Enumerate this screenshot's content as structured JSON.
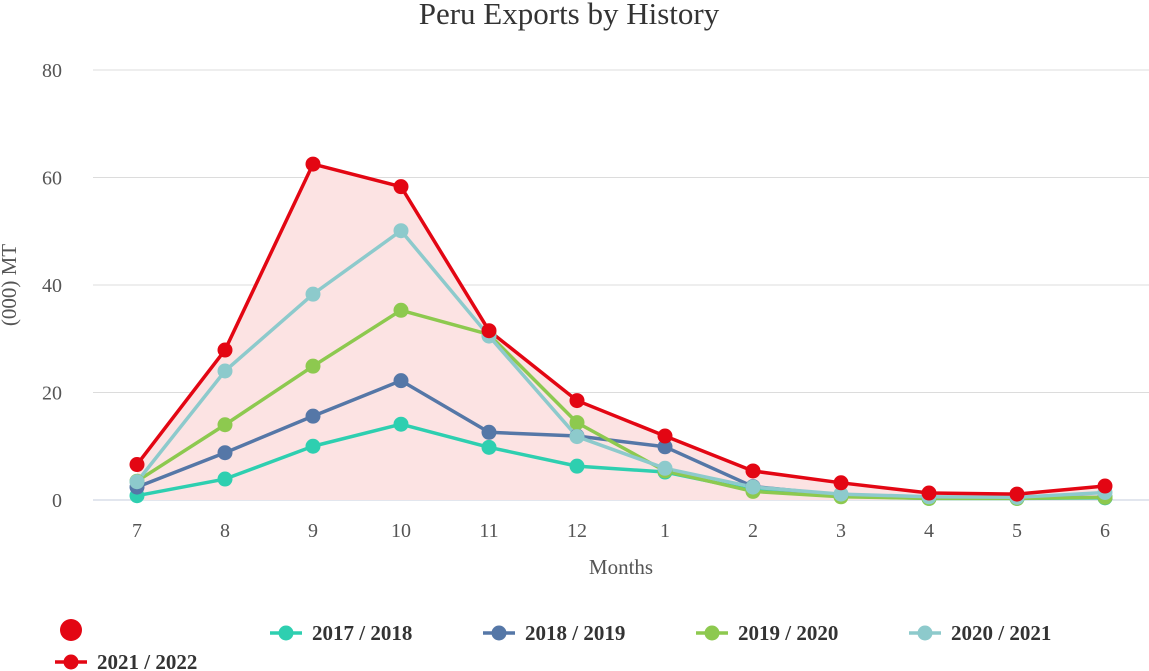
{
  "chart_data": {
    "type": "line",
    "title": "Peru Exports by History",
    "xlabel": "Months",
    "ylabel": "(000) MT",
    "ylim": [
      0,
      80
    ],
    "yticks": [
      0,
      20,
      40,
      60,
      80
    ],
    "categories": [
      "7",
      "8",
      "9",
      "10",
      "11",
      "12",
      "1",
      "2",
      "3",
      "4",
      "5",
      "6"
    ],
    "grid": true,
    "legend_position": "bottom",
    "series": [
      {
        "name": "2017 / 2018",
        "color": "#2ecfb0",
        "area": false,
        "values": [
          0.8,
          3.9,
          10.0,
          14.1,
          9.8,
          6.3,
          5.2,
          1.8,
          0.7,
          0.3,
          0.3,
          0.4
        ]
      },
      {
        "name": "2018 / 2019",
        "color": "#5577a7",
        "area": false,
        "values": [
          2.4,
          8.8,
          15.6,
          22.2,
          12.6,
          11.9,
          9.9,
          2.5,
          0.9,
          0.5,
          0.4,
          0.5
        ]
      },
      {
        "name": "2019 / 2020",
        "color": "#8dc94f",
        "area": false,
        "values": [
          3.5,
          14.0,
          24.9,
          35.3,
          30.8,
          14.4,
          5.4,
          1.6,
          0.6,
          0.3,
          0.3,
          0.5
        ]
      },
      {
        "name": "2020 / 2021",
        "color": "#8dcacc",
        "area": false,
        "values": [
          3.4,
          24.0,
          38.3,
          50.1,
          30.5,
          11.8,
          5.9,
          2.4,
          1.1,
          0.6,
          0.5,
          1.4
        ]
      },
      {
        "name": "2021 / 2022",
        "color": "#e30613",
        "area": true,
        "area_color": "#fce3e3",
        "values": [
          6.6,
          27.9,
          62.5,
          58.3,
          31.5,
          18.5,
          11.9,
          5.4,
          3.2,
          1.3,
          1.1,
          2.6
        ]
      }
    ]
  }
}
